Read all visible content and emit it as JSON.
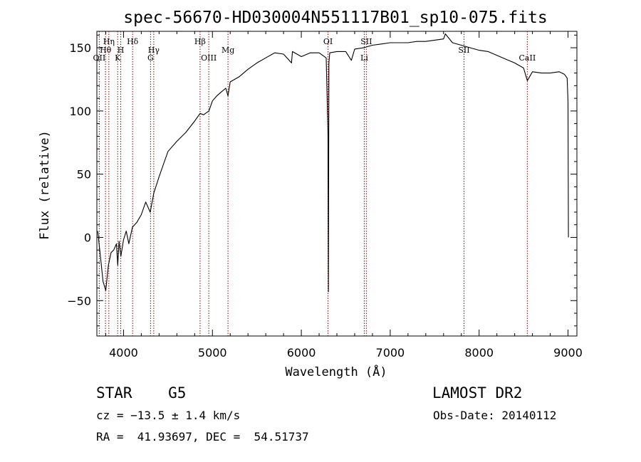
{
  "chart_data": {
    "type": "line",
    "title": "spec-56670-HD030004N551117B01_sp10-075.fits",
    "xlabel": "Wavelength (Å)",
    "ylabel": "Flux (relative)",
    "xlim": [
      3700,
      9100
    ],
    "ylim": [
      -78,
      163
    ],
    "xticks": [
      4000,
      5000,
      6000,
      7000,
      8000,
      9000
    ],
    "yticks": [
      -50,
      0,
      50,
      100,
      150
    ],
    "xtick_labels": [
      "4000",
      "5000",
      "6000",
      "7000",
      "8000",
      "9000"
    ],
    "ytick_labels": [
      "−50",
      "0",
      "50",
      "100",
      "150"
    ],
    "series": [
      {
        "color": "#000000",
        "x": [
          3710,
          3740,
          3770,
          3800,
          3830,
          3860,
          3890,
          3920,
          3935,
          3950,
          3970,
          4000,
          4030,
          4060,
          4100,
          4150,
          4200,
          4250,
          4300,
          4340,
          4400,
          4450,
          4500,
          4600,
          4700,
          4800,
          4861,
          4900,
          4960,
          5000,
          5050,
          5100,
          5150,
          5175,
          5200,
          5300,
          5400,
          5500,
          5600,
          5700,
          5800,
          5890,
          5900,
          6000,
          6100,
          6200,
          6280,
          6300,
          6305,
          6310,
          6320,
          6400,
          6500,
          6563,
          6600,
          6700,
          6800,
          6900,
          7000,
          7100,
          7200,
          7300,
          7400,
          7500,
          7600,
          7620,
          7700,
          7800,
          7900,
          8000,
          8100,
          8200,
          8300,
          8400,
          8500,
          8542,
          8600,
          8700,
          8800,
          8900,
          8960,
          8990,
          9000,
          9005
        ],
        "y": [
          5,
          -15,
          -35,
          -42,
          -22,
          -12,
          -10,
          -5,
          -22,
          -3,
          -15,
          -2,
          5,
          -5,
          8,
          12,
          18,
          28,
          20,
          35,
          48,
          58,
          68,
          76,
          83,
          92,
          98,
          97,
          100,
          108,
          112,
          115,
          118,
          112,
          123,
          127,
          133,
          138,
          142,
          146,
          145,
          138,
          147,
          143,
          146,
          146,
          142,
          82,
          -43,
          138,
          146,
          147,
          147,
          140,
          149,
          150,
          152,
          153,
          154,
          154,
          154,
          155,
          155,
          156,
          157,
          161,
          154,
          152,
          150,
          148,
          147,
          144,
          141,
          138,
          134,
          124,
          131,
          130,
          130,
          131,
          129,
          126,
          108,
          0
        ]
      }
    ],
    "vlines": [
      {
        "x": 3727,
        "color": "#8b0000"
      },
      {
        "x": 3797,
        "color": "#8b0000"
      },
      {
        "x": 3835,
        "color": "#8b0000"
      },
      {
        "x": 3934,
        "color": "#8b0000"
      },
      {
        "x": 3969,
        "color": "#8b0000"
      },
      {
        "x": 4102,
        "color": "#8b0000"
      },
      {
        "x": 4304,
        "color": "#8b0000"
      },
      {
        "x": 4340,
        "color": "#8b0000"
      },
      {
        "x": 4861,
        "color": "#8b0000"
      },
      {
        "x": 4959,
        "color": "#8b0000"
      },
      {
        "x": 5175,
        "color": "#8b0000"
      },
      {
        "x": 6300,
        "color": "#8b0000"
      },
      {
        "x": 6708,
        "color": "#8b0000"
      },
      {
        "x": 6731,
        "color": "#8b0000"
      },
      {
        "x": 7830,
        "color": "#8b0000"
      },
      {
        "x": 8542,
        "color": "#8b0000"
      }
    ],
    "annotations": [
      {
        "text": "Hη",
        "x": 3835,
        "y": 153
      },
      {
        "text": "Hθ",
        "x": 3797,
        "y": 146
      },
      {
        "text": "OII",
        "x": 3727,
        "y": 140
      },
      {
        "text": "H",
        "x": 3969,
        "y": 146
      },
      {
        "text": "K",
        "x": 3934,
        "y": 140
      },
      {
        "text": "Hδ",
        "x": 4102,
        "y": 153
      },
      {
        "text": "Hγ",
        "x": 4340,
        "y": 146
      },
      {
        "text": "G",
        "x": 4304,
        "y": 140
      },
      {
        "text": "Hβ",
        "x": 4861,
        "y": 153
      },
      {
        "text": "OIII",
        "x": 4959,
        "y": 140
      },
      {
        "text": "Mg",
        "x": 5175,
        "y": 146
      },
      {
        "text": "OI",
        "x": 6300,
        "y": 153
      },
      {
        "text": "SII",
        "x": 6731,
        "y": 153
      },
      {
        "text": "Li",
        "x": 6708,
        "y": 140
      },
      {
        "text": "SII",
        "x": 7830,
        "y": 146
      },
      {
        "text": "CaII",
        "x": 8542,
        "y": 140
      }
    ],
    "grid": false
  },
  "info": {
    "object": "STAR    G5",
    "survey": "LAMOST DR2",
    "cz": "cz = −13.5 ± 1.4 km/s",
    "obs_date": "Obs-Date: 20140112",
    "coords": "RA =  41.93697, DEC =  54.51737"
  }
}
